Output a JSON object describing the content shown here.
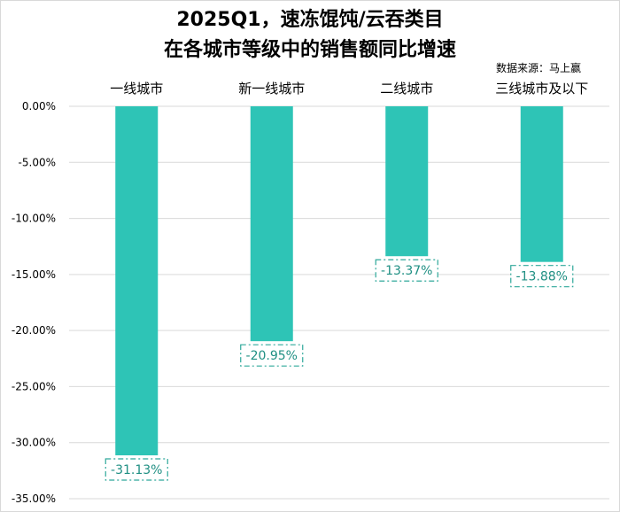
{
  "chart_data": {
    "type": "bar",
    "title_line1": "2025Q1，速冻馄饨/云吞类目",
    "title_line2": "在各城市等级中的销售额同比增速",
    "source": "数据来源：马上赢",
    "categories": [
      "一线城市",
      "新一线城市",
      "二线城市",
      "三线城市及以下"
    ],
    "values": [
      -31.13,
      -20.95,
      -13.37,
      -13.88
    ],
    "value_labels": [
      "-31.13%",
      "-20.95%",
      "-13.37%",
      "-13.88%"
    ],
    "ylim": [
      -35,
      0
    ],
    "yticks": [
      "0.00%",
      "-5.00%",
      "-10.00%",
      "-15.00%",
      "-20.00%",
      "-25.00%",
      "-30.00%",
      "-35.00%"
    ],
    "grid": true,
    "legend": "none",
    "xlabel": "",
    "ylabel": "",
    "bar_color": "#2ec4b6",
    "grid_color": "#d9d9d9",
    "label_border_color": "#2ea89a",
    "label_text_color": "#1f8f83"
  }
}
